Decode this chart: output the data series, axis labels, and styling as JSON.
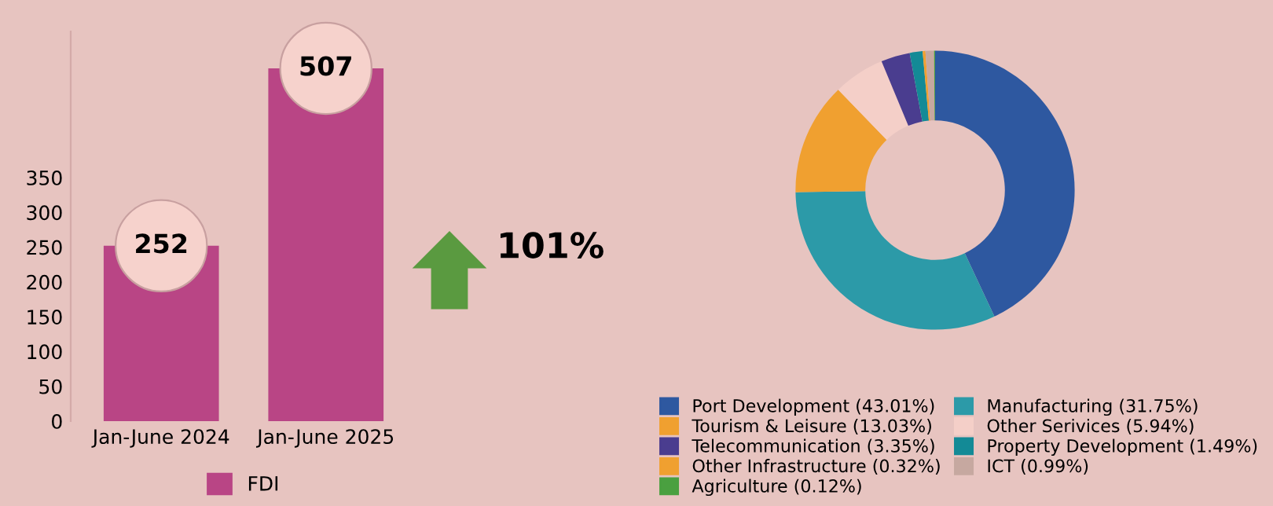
{
  "chart_data": [
    {
      "type": "bar",
      "categories": [
        "Jan-June 2024",
        "Jan-June 2025"
      ],
      "series": [
        {
          "name": "FDI",
          "color": "#b94585",
          "values": [
            252,
            507
          ]
        }
      ],
      "ylim": [
        0,
        560
      ],
      "yticks": [
        0,
        50,
        100,
        150,
        200,
        250,
        300,
        350
      ],
      "data_labels": true,
      "grid": false,
      "legend": "bottom",
      "annotations": [
        "101%"
      ]
    },
    {
      "type": "donut",
      "categories": [
        "Port Development (43.01%)",
        "Manufacturing (31.75%)",
        "Tourism & Leisure (13.03%)",
        "Other Serivices (5.94%)",
        "Telecommunication (3.35%)",
        "Property Development (1.49%)",
        "Other Infrastructure (0.32%)",
        "ICT (0.99%)",
        "Agriculture (0.12%)"
      ],
      "values": [
        43.01,
        31.75,
        13.03,
        5.94,
        3.35,
        1.49,
        0.32,
        0.99,
        0.12
      ],
      "colors": [
        "#2e58a0",
        "#2c9aa8",
        "#f0a030",
        "#f4cfc8",
        "#4a3d8f",
        "#138a96",
        "#f0a030",
        "#c6a8a0",
        "#4aa040"
      ],
      "legend": "bottom"
    }
  ]
}
